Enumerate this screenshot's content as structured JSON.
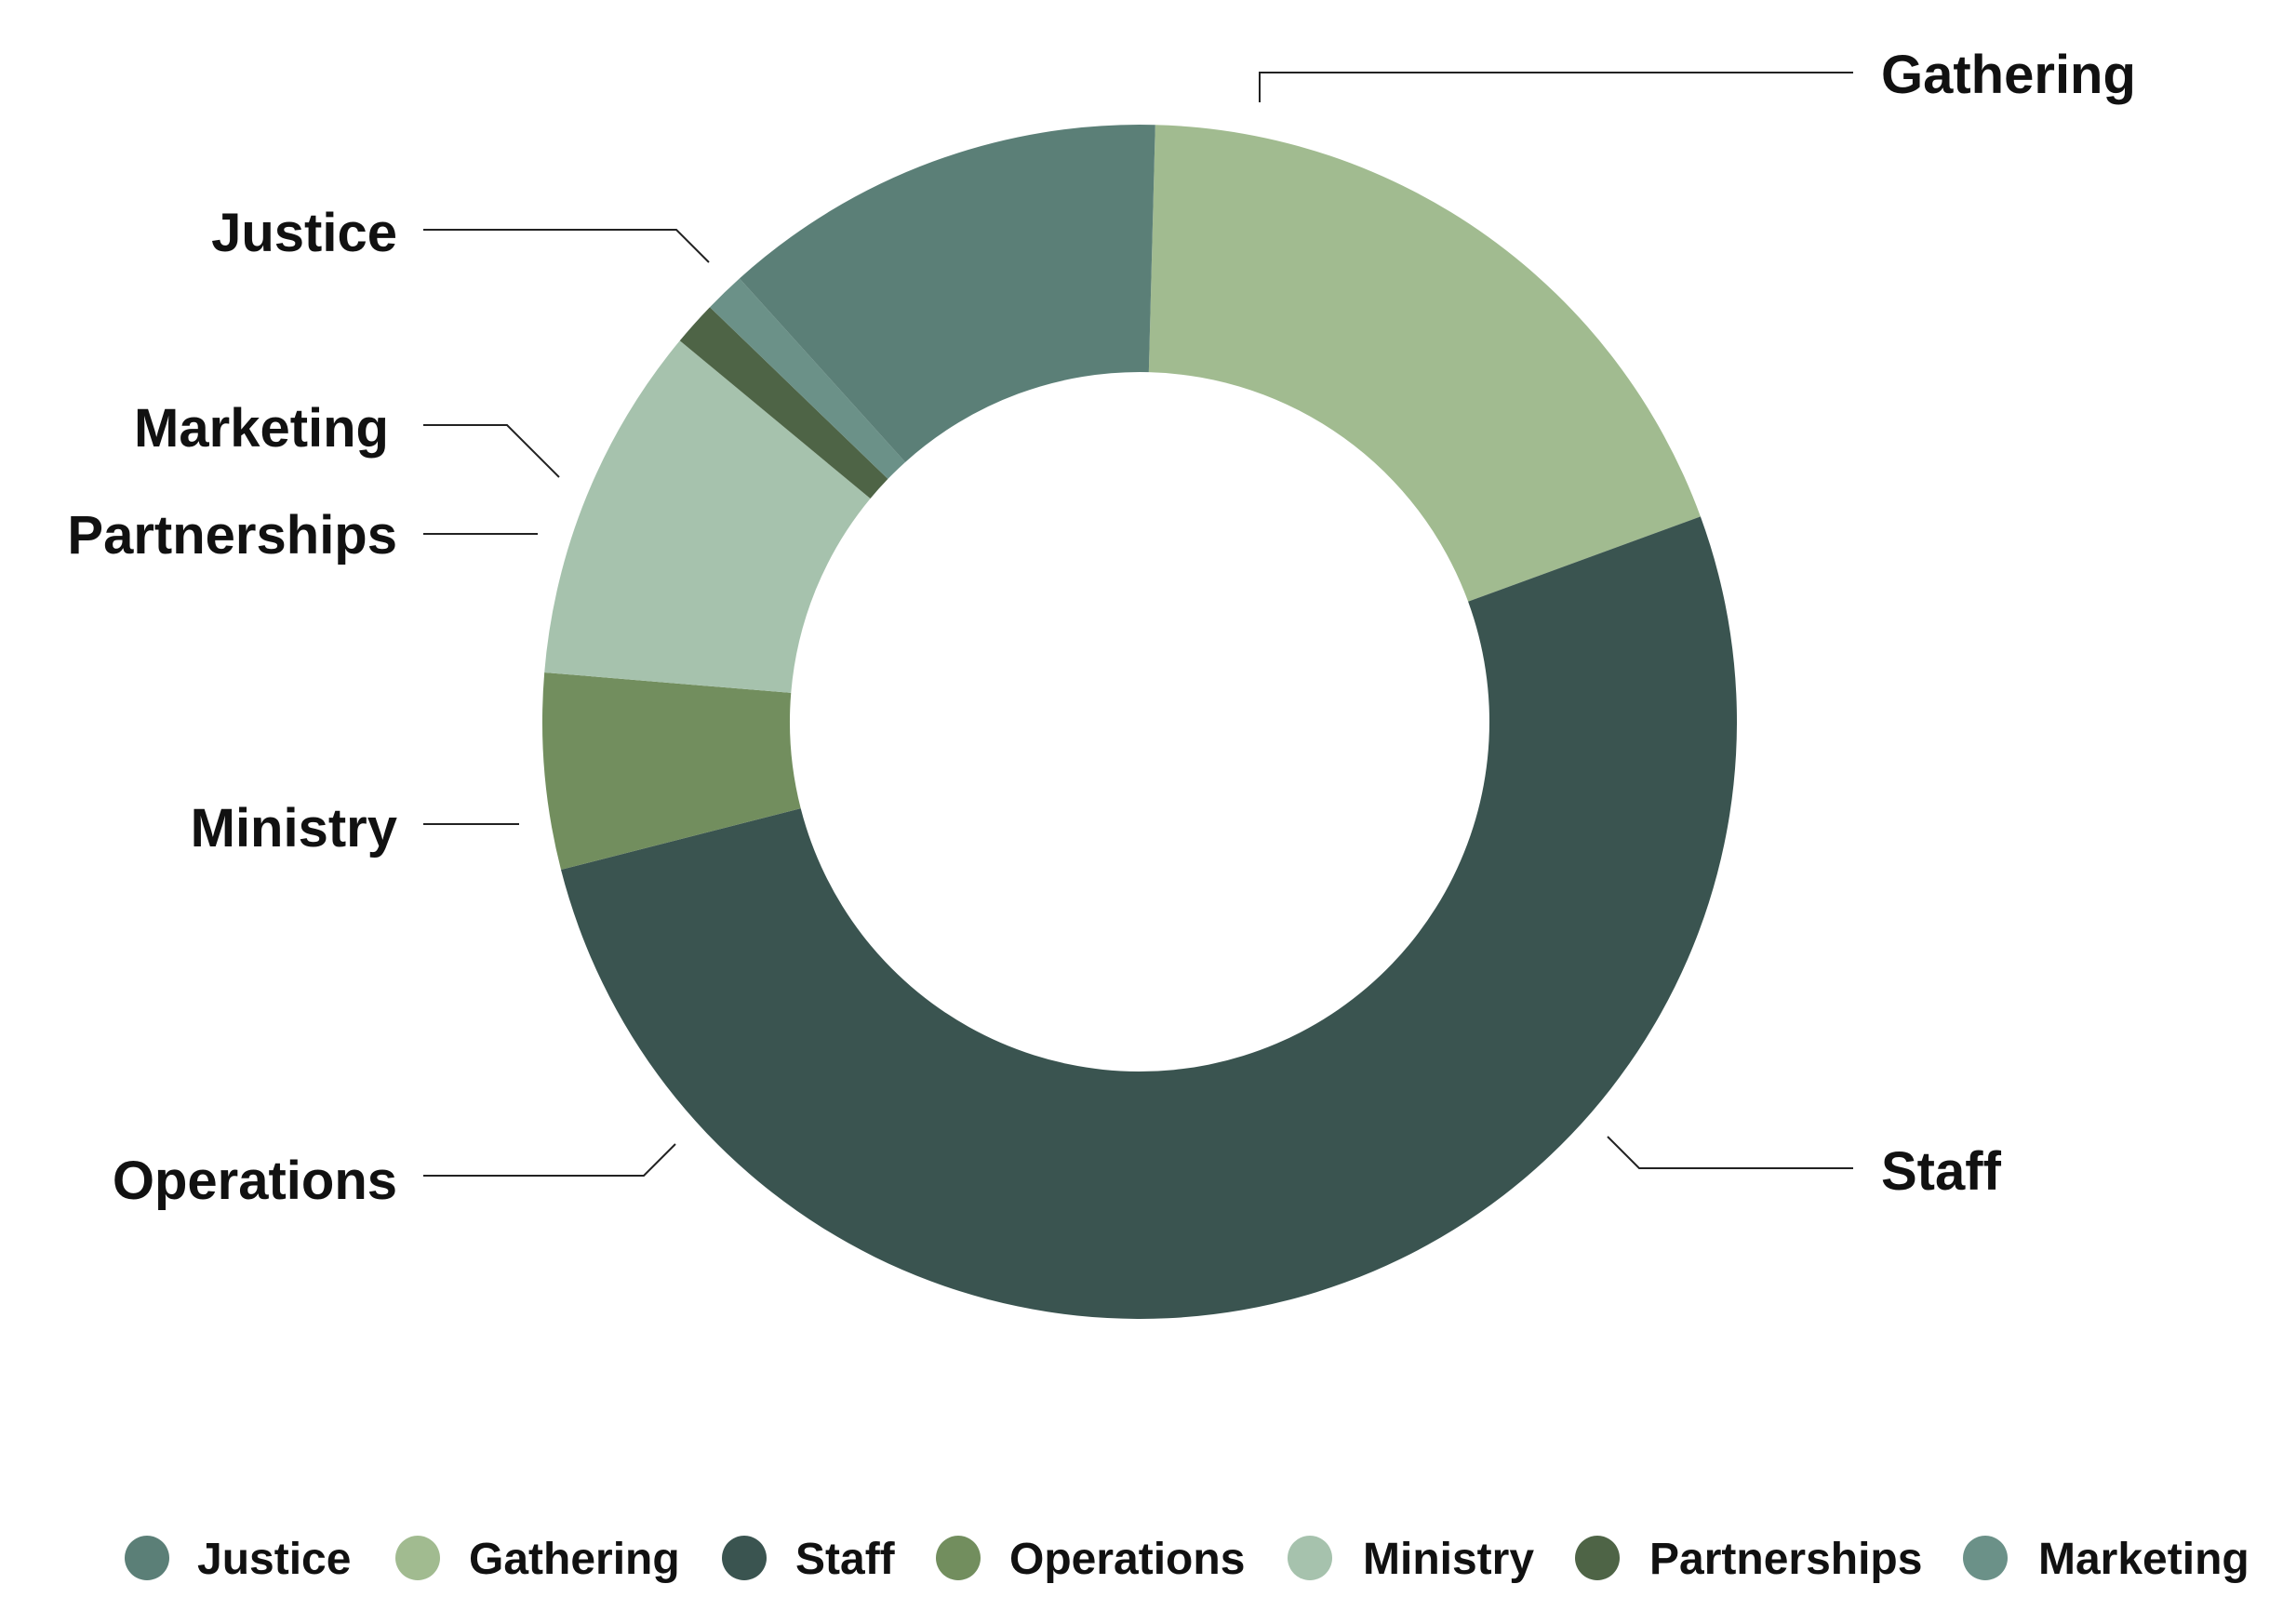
{
  "chart_data": {
    "type": "pie",
    "donut": true,
    "title": "",
    "legend_position": "bottom",
    "slices": [
      {
        "name": "Justice",
        "value": 12.1,
        "color": "#5b7f77"
      },
      {
        "name": "Gathering",
        "value": 19.0,
        "color": "#a1bb90"
      },
      {
        "name": "Staff",
        "value": 51.6,
        "color": "#3a5450"
      },
      {
        "name": "Operations",
        "value": 5.3,
        "color": "#728e5e"
      },
      {
        "name": "Ministry",
        "value": 9.7,
        "color": "#a6c2ad"
      },
      {
        "name": "Partnerships",
        "value": 1.2,
        "color": "#4e6446"
      },
      {
        "name": "Marketing",
        "value": 1.1,
        "color": "#6b9188"
      }
    ]
  }
}
